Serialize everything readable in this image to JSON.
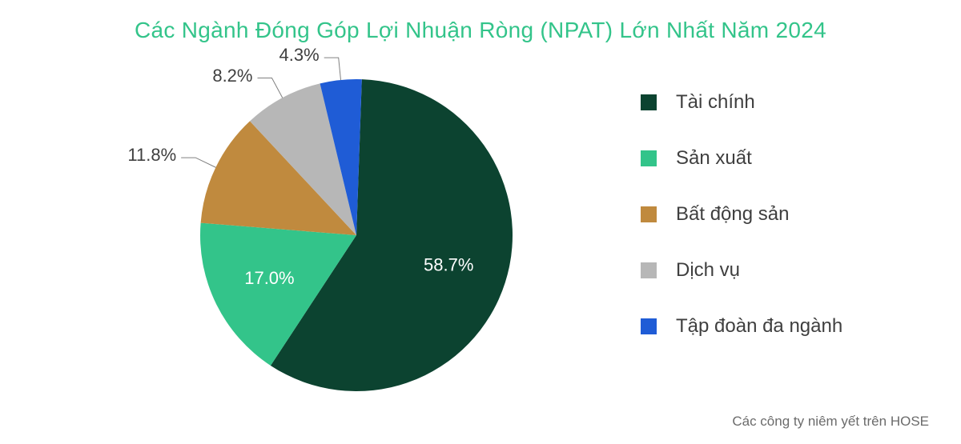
{
  "title": {
    "text": "Các Ngành Đóng Góp Lợi Nhuận Ròng (NPAT) Lớn Nhất Năm 2024",
    "color": "#33c48a",
    "fontsize": 28
  },
  "chart": {
    "type": "pie",
    "background_color": "#ffffff",
    "radius": 195,
    "start_angle_deg": 88,
    "direction": "clockwise",
    "label_fontsize": 22,
    "label_color": "#3f3f3f",
    "leader_line_color": "#808080",
    "leader_line_width": 1,
    "slices": [
      {
        "name": "Tài chính",
        "value": 58.7,
        "label": "58.7%",
        "color": "#0c4330",
        "label_inside": true
      },
      {
        "name": "Sản xuất",
        "value": 17.0,
        "label": "17.0%",
        "color": "#33c48a",
        "label_inside": true
      },
      {
        "name": "Bất động sản",
        "value": 11.8,
        "label": "11.8%",
        "color": "#c08a3e",
        "label_inside": false
      },
      {
        "name": "Dịch vụ",
        "value": 8.2,
        "label": "8.2%",
        "color": "#b7b7b7",
        "label_inside": false
      },
      {
        "name": "Tập đoàn đa ngành",
        "value": 4.3,
        "label": "4.3%",
        "color": "#1f5cd6",
        "label_inside": false
      }
    ]
  },
  "legend": {
    "fontsize": 24,
    "text_color": "#3f3f3f",
    "swatch_size": 20,
    "items": [
      {
        "label": "Tài chính",
        "color": "#0c4330"
      },
      {
        "label": "Sản xuất",
        "color": "#33c48a"
      },
      {
        "label": "Bất động sản",
        "color": "#c08a3e"
      },
      {
        "label": "Dịch vụ",
        "color": "#b7b7b7"
      },
      {
        "label": "Tập đoàn đa ngành",
        "color": "#1f5cd6"
      }
    ]
  },
  "footnote": {
    "text": "Các công ty niêm yết trên HOSE",
    "fontsize": 17,
    "color": "#6b6b6b"
  }
}
